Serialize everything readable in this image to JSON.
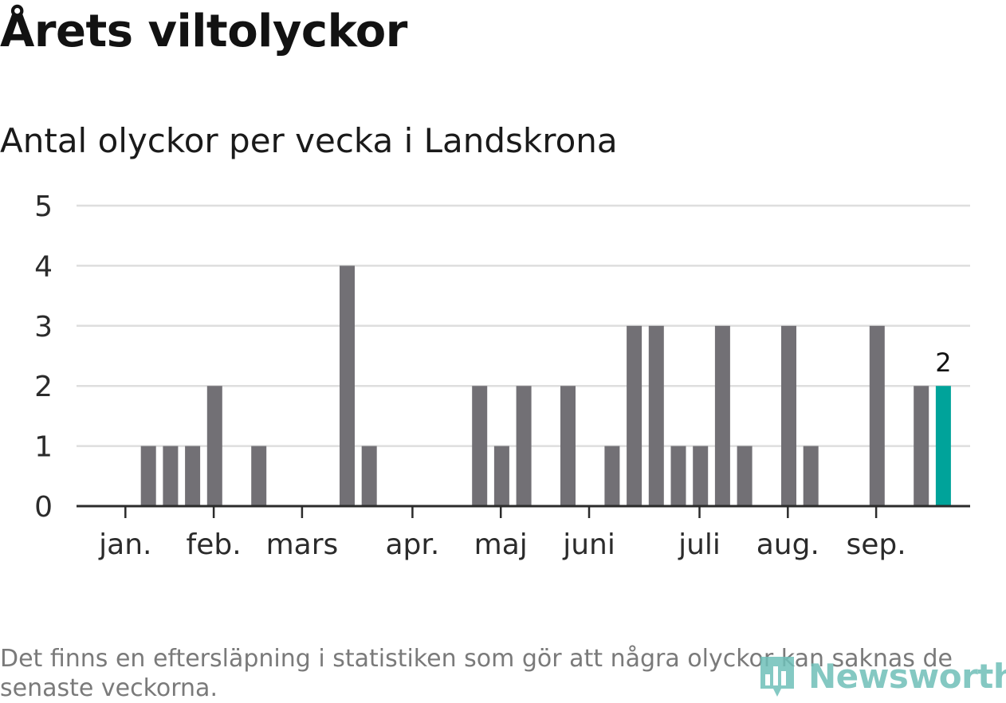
{
  "colors": {
    "bar": "#727075",
    "highlight": "#00a39a",
    "grid": "#dedede",
    "axis": "#2b2b2b",
    "brand": "#6fbfb8"
  },
  "brand": {
    "name": "Newsworthy",
    "icon": "bar-chart-logo-icon"
  },
  "footnote": "Det finns en eftersläpning i statistiken som gör att några olyckor kan saknas de senaste veckorna.",
  "chart_data": {
    "type": "bar",
    "title": "Årets viltolyckor",
    "subtitle": "Antal olyckor per vecka i Landskrona",
    "ylim": [
      0,
      5
    ],
    "yticks": [
      0,
      1,
      2,
      3,
      4,
      5
    ],
    "grid": true,
    "weeks": [
      1,
      2,
      3,
      4,
      5,
      6,
      7,
      8,
      9,
      10,
      11,
      12,
      13,
      14,
      15,
      16,
      17,
      18,
      19,
      20,
      21,
      22,
      23,
      24,
      25,
      26,
      27,
      28,
      29,
      30,
      31,
      32,
      33,
      34,
      35,
      36,
      37,
      38,
      39,
      40,
      41
    ],
    "values": [
      0,
      1,
      1,
      1,
      2,
      0,
      1,
      0,
      0,
      0,
      4,
      1,
      0,
      0,
      0,
      0,
      2,
      1,
      2,
      0,
      2,
      0,
      1,
      3,
      3,
      1,
      1,
      3,
      1,
      0,
      3,
      1,
      0,
      0,
      3,
      0,
      2,
      2,
      0,
      0,
      0
    ],
    "month_ticks": [
      {
        "label": "jan.",
        "week": 1.3
      },
      {
        "label": "feb.",
        "week": 5.3
      },
      {
        "label": "mars",
        "week": 9.3
      },
      {
        "label": "apr.",
        "week": 14.3
      },
      {
        "label": "maj",
        "week": 18.3
      },
      {
        "label": "juni",
        "week": 22.3
      },
      {
        "label": "juli",
        "week": 27.3
      },
      {
        "label": "aug.",
        "week": 31.3
      },
      {
        "label": "sep.",
        "week": 35.3
      }
    ],
    "highlight_week": 38,
    "highlight_label": "2"
  }
}
